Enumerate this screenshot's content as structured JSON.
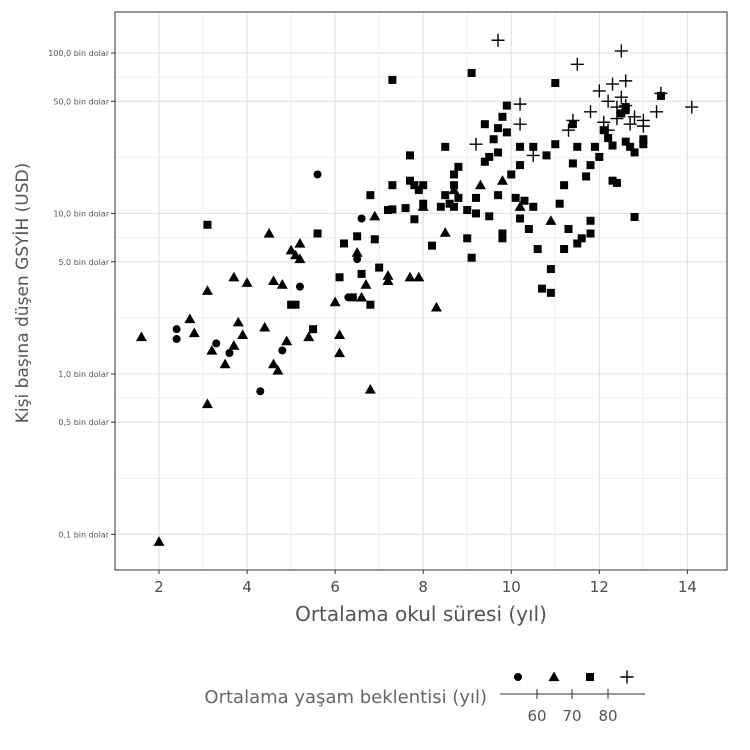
{
  "chart_data": {
    "type": "scatter",
    "xlabel": "Ortalama okul süresi (yıl)",
    "ylabel": "Kişi başına düşen GSYİH (USD)",
    "xlim": [
      1.0,
      14.9
    ],
    "ylim": [
      0.06,
      180
    ],
    "y_scale": "log",
    "grid": true,
    "x_ticks": [
      {
        "value": 2,
        "label": "2"
      },
      {
        "value": 4,
        "label": "4"
      },
      {
        "value": 6,
        "label": "6"
      },
      {
        "value": 8,
        "label": "8"
      },
      {
        "value": 10,
        "label": "10"
      },
      {
        "value": 12,
        "label": "12"
      },
      {
        "value": 14,
        "label": "14"
      }
    ],
    "y_ticks": [
      {
        "value": 0.1,
        "label": "0,1 bin dolar"
      },
      {
        "value": 0.5,
        "label": "0,5 bin dolar"
      },
      {
        "value": 1,
        "label": "1,0 bin dolar"
      },
      {
        "value": 5,
        "label": "5.0 bin dolar"
      },
      {
        "value": 10,
        "label": "10,0 bin dolar"
      },
      {
        "value": 50,
        "label": "50,0 bin dolar"
      },
      {
        "value": 100,
        "label": "100,0 bin dolar"
      }
    ],
    "legend": {
      "title": "Ortalama yaşam beklentisi (yıl)",
      "position": "bottom",
      "ticks": [
        "60",
        "70",
        "80"
      ],
      "shapes": [
        "circle",
        "triangle",
        "square",
        "cross"
      ]
    },
    "series": [
      {
        "shape": "circle",
        "points": [
          [
            2.4,
            1.9
          ],
          [
            2.4,
            1.65
          ],
          [
            3.3,
            1.55
          ],
          [
            3.6,
            1.35
          ],
          [
            4.3,
            0.78
          ],
          [
            4.8,
            1.4
          ],
          [
            5.2,
            3.5
          ],
          [
            5.6,
            17.5
          ],
          [
            6.3,
            3.0
          ],
          [
            6.5,
            5.2
          ],
          [
            6.6,
            9.3
          ]
        ]
      },
      {
        "shape": "triangle",
        "points": [
          [
            1.6,
            1.7
          ],
          [
            2.0,
            0.09
          ],
          [
            2.7,
            2.2
          ],
          [
            2.8,
            1.8
          ],
          [
            3.1,
            3.3
          ],
          [
            3.1,
            0.65
          ],
          [
            3.2,
            1.4
          ],
          [
            3.5,
            1.15
          ],
          [
            3.7,
            4.0
          ],
          [
            3.7,
            1.5
          ],
          [
            3.8,
            2.1
          ],
          [
            3.9,
            1.75
          ],
          [
            4.0,
            3.7
          ],
          [
            4.4,
            1.95
          ],
          [
            4.5,
            7.5
          ],
          [
            4.6,
            1.15
          ],
          [
            4.6,
            3.8
          ],
          [
            4.7,
            1.05
          ],
          [
            4.8,
            3.6
          ],
          [
            4.9,
            1.6
          ],
          [
            5.0,
            5.9
          ],
          [
            5.1,
            5.5
          ],
          [
            5.2,
            6.5
          ],
          [
            5.2,
            5.2
          ],
          [
            5.4,
            1.7
          ],
          [
            6.0,
            2.8
          ],
          [
            6.1,
            1.75
          ],
          [
            6.1,
            1.35
          ],
          [
            6.5,
            5.7
          ],
          [
            6.6,
            3.0
          ],
          [
            6.7,
            3.6
          ],
          [
            6.8,
            0.8
          ],
          [
            6.9,
            9.6
          ],
          [
            7.2,
            3.8
          ],
          [
            7.2,
            4.1
          ],
          [
            7.7,
            4.0
          ],
          [
            7.9,
            4.0
          ],
          [
            8.0,
            11.0
          ],
          [
            8.3,
            2.6
          ],
          [
            8.5,
            7.6
          ],
          [
            8.7,
            14.0
          ],
          [
            9.3,
            15.0
          ],
          [
            9.8,
            16.0
          ],
          [
            10.2,
            11.0
          ],
          [
            10.9,
            9.0
          ]
        ]
      },
      {
        "shape": "square",
        "points": [
          [
            3.1,
            8.5
          ],
          [
            5.0,
            2.7
          ],
          [
            5.1,
            2.7
          ],
          [
            5.5,
            1.9
          ],
          [
            5.6,
            7.5
          ],
          [
            6.1,
            4.0
          ],
          [
            6.2,
            6.5
          ],
          [
            6.4,
            3.0
          ],
          [
            6.5,
            7.2
          ],
          [
            6.6,
            4.2
          ],
          [
            6.8,
            2.7
          ],
          [
            6.8,
            13.0
          ],
          [
            6.9,
            6.9
          ],
          [
            7.0,
            4.6
          ],
          [
            7.2,
            10.5
          ],
          [
            7.3,
            10.6
          ],
          [
            7.3,
            68.0
          ],
          [
            7.3,
            15.0
          ],
          [
            7.6,
            10.8
          ],
          [
            7.7,
            16.0
          ],
          [
            7.7,
            23.0
          ],
          [
            7.8,
            15.0
          ],
          [
            7.8,
            9.2
          ],
          [
            7.9,
            14.0
          ],
          [
            8.0,
            11.5
          ],
          [
            8.0,
            15.0
          ],
          [
            8.2,
            6.3
          ],
          [
            8.4,
            11.0
          ],
          [
            8.5,
            13.0
          ],
          [
            8.5,
            26.0
          ],
          [
            8.6,
            11.5
          ],
          [
            8.7,
            17.5
          ],
          [
            8.7,
            11.0
          ],
          [
            8.7,
            15.0
          ],
          [
            8.8,
            19.5
          ],
          [
            8.8,
            12.5
          ],
          [
            9.0,
            10.5
          ],
          [
            9.0,
            7.0
          ],
          [
            9.1,
            75.0
          ],
          [
            9.1,
            5.3
          ],
          [
            9.2,
            12.5
          ],
          [
            9.2,
            10.0
          ],
          [
            9.4,
            21.0
          ],
          [
            9.4,
            36.0
          ],
          [
            9.5,
            22.5
          ],
          [
            9.5,
            9.6
          ],
          [
            9.6,
            29.0
          ],
          [
            9.7,
            24.0
          ],
          [
            9.7,
            13.0
          ],
          [
            9.7,
            34.0
          ],
          [
            9.8,
            40.0
          ],
          [
            9.8,
            7.5
          ],
          [
            9.8,
            7.0
          ],
          [
            9.9,
            32.0
          ],
          [
            9.9,
            47.0
          ],
          [
            10.0,
            17.5
          ],
          [
            10.1,
            12.5
          ],
          [
            10.2,
            26.0
          ],
          [
            10.2,
            20.0
          ],
          [
            10.2,
            9.3
          ],
          [
            10.3,
            12.0
          ],
          [
            10.4,
            8.0
          ],
          [
            10.5,
            26.0
          ],
          [
            10.5,
            11.0
          ],
          [
            10.6,
            6.0
          ],
          [
            10.7,
            3.4
          ],
          [
            10.8,
            23.0
          ],
          [
            10.9,
            4.5
          ],
          [
            10.9,
            3.2
          ],
          [
            11.0,
            65.0
          ],
          [
            11.0,
            27.0
          ],
          [
            11.1,
            11.5
          ],
          [
            11.2,
            15.0
          ],
          [
            11.2,
            6.0
          ],
          [
            11.3,
            8.0
          ],
          [
            11.4,
            36.0
          ],
          [
            11.4,
            20.5
          ],
          [
            11.5,
            26.0
          ],
          [
            11.5,
            6.5
          ],
          [
            11.6,
            7.0
          ],
          [
            11.7,
            17.0
          ],
          [
            11.8,
            20.0
          ],
          [
            11.8,
            9.0
          ],
          [
            11.8,
            7.5
          ],
          [
            11.9,
            26.0
          ],
          [
            12.0,
            22.5
          ],
          [
            12.1,
            33.0
          ],
          [
            12.2,
            29.5
          ],
          [
            12.3,
            26.5
          ],
          [
            12.3,
            16.0
          ],
          [
            12.4,
            15.5
          ],
          [
            12.5,
            42.0
          ],
          [
            12.6,
            28.0
          ],
          [
            12.6,
            46.0
          ],
          [
            12.6,
            44.0
          ],
          [
            12.7,
            26.0
          ],
          [
            12.8,
            24.0
          ],
          [
            12.8,
            9.5
          ],
          [
            13.0,
            29.0
          ],
          [
            13.0,
            27.0
          ],
          [
            13.4,
            54.0
          ]
        ]
      },
      {
        "shape": "cross",
        "points": [
          [
            9.2,
            27.0
          ],
          [
            9.7,
            120.0
          ],
          [
            10.2,
            36.0
          ],
          [
            10.2,
            48.0
          ],
          [
            10.5,
            23.0
          ],
          [
            11.3,
            33.0
          ],
          [
            11.4,
            38.0
          ],
          [
            11.5,
            85.0
          ],
          [
            11.8,
            43.0
          ],
          [
            12.0,
            58.0
          ],
          [
            12.1,
            37.0
          ],
          [
            12.2,
            33.0
          ],
          [
            12.2,
            50.0
          ],
          [
            12.3,
            64.0
          ],
          [
            12.4,
            46.0
          ],
          [
            12.4,
            39.0
          ],
          [
            12.5,
            103.0
          ],
          [
            12.5,
            53.0
          ],
          [
            12.6,
            47.0
          ],
          [
            12.6,
            67.0
          ],
          [
            12.7,
            36.0
          ],
          [
            12.8,
            40.0
          ],
          [
            13.0,
            35.0
          ],
          [
            13.0,
            38.0
          ],
          [
            13.3,
            43.0
          ],
          [
            13.4,
            56.0
          ],
          [
            14.1,
            46.0
          ]
        ]
      }
    ]
  }
}
